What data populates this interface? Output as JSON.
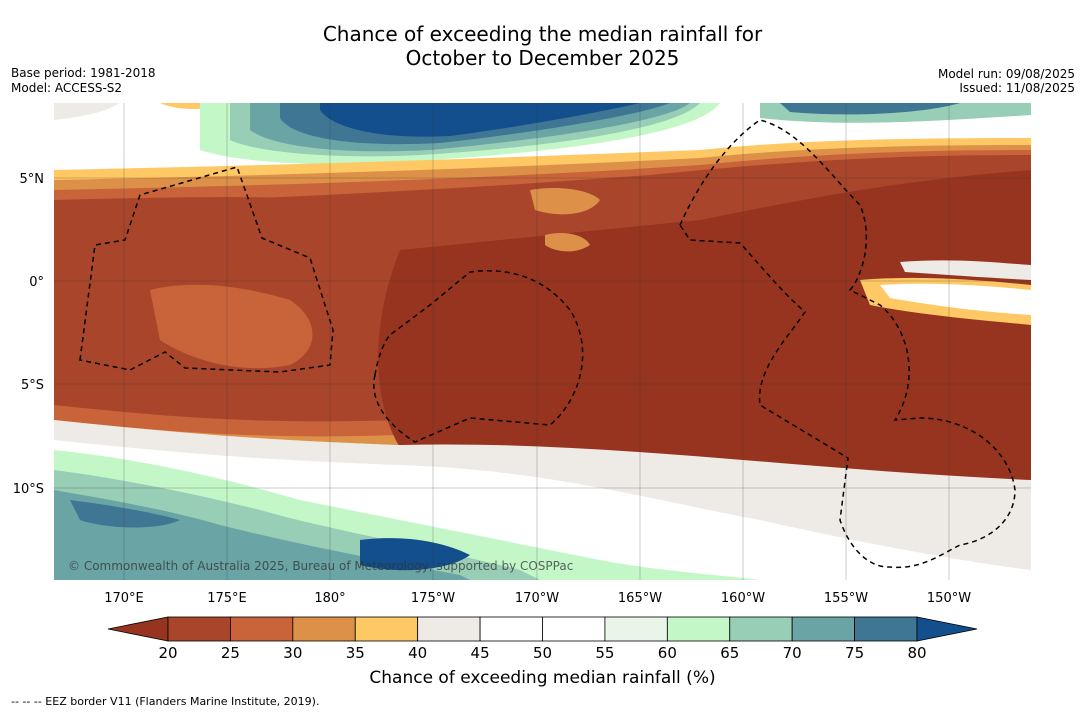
{
  "title_line1": "Chance of exceeding the median rainfall for",
  "title_line2": "October to December 2025",
  "meta_left": {
    "base_period": "Base period: 1981-2018",
    "model": "Model: ACCESS-S2"
  },
  "meta_right": {
    "model_run": "Model run: 09/08/2025",
    "issued": "Issued: 11/08/2025"
  },
  "map": {
    "lat_ticks": [
      "5°N",
      "0°",
      "5°S",
      "10°S"
    ],
    "lon_ticks": [
      "170°E",
      "175°E",
      "180°",
      "175°W",
      "170°W",
      "165°W",
      "160°W",
      "155°W",
      "150°W"
    ],
    "copyright": "© Commonwealth of Australia 2025, Bureau of Meteorology, supported by COSPPac"
  },
  "colorbar": {
    "ticks": [
      "20",
      "25",
      "30",
      "35",
      "40",
      "45",
      "50",
      "55",
      "60",
      "65",
      "70",
      "75",
      "80"
    ],
    "colors": [
      "#a9452a",
      "#c8633a",
      "#dd9148",
      "#fec864",
      "#eeeae6",
      "#ffffff",
      "#ffffff",
      "#e8f5e8",
      "#c4f7c8",
      "#98cdb6",
      "#6aa4a4",
      "#3f7694",
      "#124f8c"
    ],
    "under_color": "#973420",
    "label": "Chance of exceeding median rainfall (%)"
  },
  "footer": "--  --  -- EEZ border V11 (Flanders Marine Institute, 2019)."
}
